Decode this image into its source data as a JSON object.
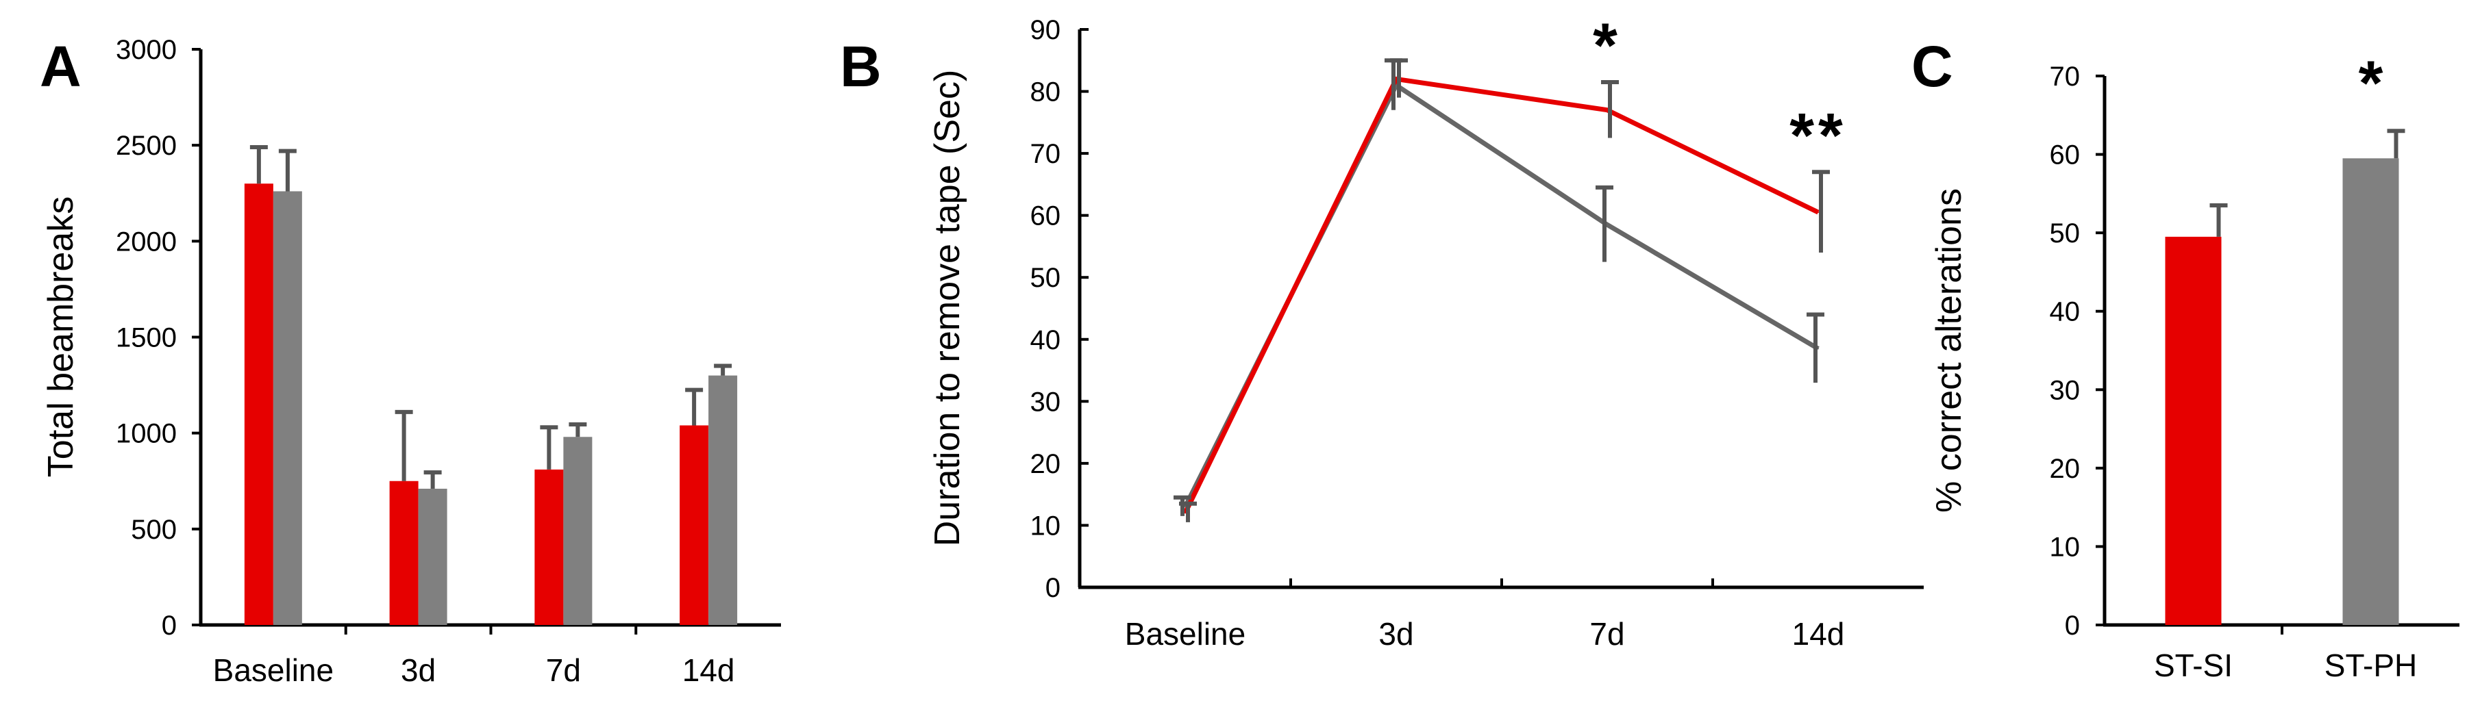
{
  "colors": {
    "series_a": "#e60000",
    "series_b": "#808080",
    "axis": "#000000",
    "error_bar": "#555555"
  },
  "chart_data": [
    {
      "panel": "A",
      "type": "bar",
      "ylabel": "Total beambreaks",
      "xlabel": "",
      "ylim": [
        0,
        3000
      ],
      "yticks": [
        0,
        500,
        1000,
        1500,
        2000,
        2500,
        3000
      ],
      "categories": [
        "Baseline",
        "3d",
        "7d",
        "14d"
      ],
      "series": [
        {
          "color": "#e60000",
          "values": [
            2300,
            750,
            810,
            1040
          ],
          "errors": [
            190,
            360,
            220,
            185
          ]
        },
        {
          "color": "#808080",
          "values": [
            2260,
            710,
            980,
            1300
          ],
          "errors": [
            210,
            85,
            65,
            50
          ]
        }
      ],
      "grid": false
    },
    {
      "panel": "B",
      "type": "line",
      "ylabel": "Duration to remove tape (Sec)",
      "xlabel": "",
      "ylim": [
        0,
        90
      ],
      "yticks": [
        0,
        10,
        20,
        30,
        40,
        50,
        60,
        70,
        80,
        90
      ],
      "categories": [
        "Baseline",
        "3d",
        "7d",
        "14d"
      ],
      "series": [
        {
          "color": "#e60000",
          "values": [
            12,
            82,
            77,
            60.5
          ],
          "errors": [
            1.5,
            3,
            4.5,
            6.5
          ]
        },
        {
          "color": "#666666",
          "values": [
            13,
            81,
            58.5,
            38.5
          ],
          "errors": [
            1.5,
            4,
            6,
            5.5
          ]
        }
      ],
      "annotations": [
        {
          "category": "7d",
          "text": "*"
        },
        {
          "category": "14d",
          "text": "**"
        }
      ],
      "grid": false
    },
    {
      "panel": "C",
      "type": "bar",
      "ylabel": "% correct alterations",
      "xlabel": "",
      "ylim": [
        0,
        70
      ],
      "yticks": [
        0,
        10,
        20,
        30,
        40,
        50,
        60,
        70
      ],
      "categories": [
        "ST-SI",
        "ST-PH"
      ],
      "values": [
        49.5,
        59.5
      ],
      "errors": [
        4,
        3.5
      ],
      "colors": [
        "#e60000",
        "#808080"
      ],
      "annotations": [
        {
          "category": "ST-PH",
          "text": "*"
        }
      ],
      "grid": false
    }
  ]
}
